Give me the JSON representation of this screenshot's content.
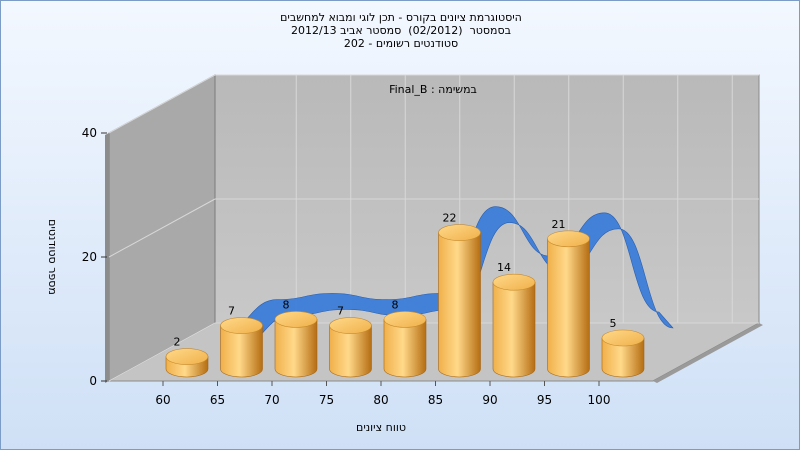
{
  "header": {
    "title_line1": "היסטוגרמת ציונים בקורס - תכן לוגי ומבוא למחשבים",
    "title_line2": "בסמסטר  (02/2012)  סמסטר אביב 2012/13",
    "title_line3": "סטודנטים רשומים - 202"
  },
  "chart_data": {
    "type": "bar",
    "annotation": "במשימה : Final_B",
    "xlabel": "טווח ציונים",
    "ylabel": "מספר סטודנטים",
    "categories": [
      "60",
      "65",
      "70",
      "75",
      "80",
      "85",
      "90",
      "95",
      "100"
    ],
    "values": [
      2,
      7,
      8,
      7,
      8,
      22,
      14,
      21,
      5
    ],
    "y_ticks": [
      "0",
      "20",
      "40"
    ],
    "ylim": [
      0,
      40
    ],
    "grid": true,
    "bar_colors": {
      "light": "#ffd98a",
      "mid": "#f0b04a",
      "dark": "#b56d12"
    },
    "curve_color": "#3b7dd8",
    "wall_color": "#a9a9a9",
    "floor_color": "#c4c4c4"
  }
}
